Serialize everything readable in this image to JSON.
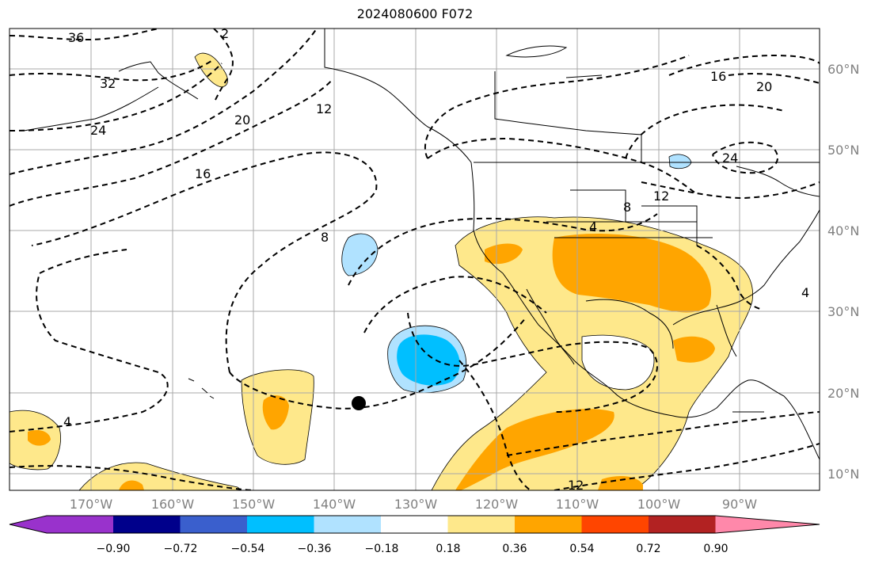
{
  "title": "2024080600 F072",
  "map": {
    "lat_labels": [
      "60°N",
      "50°N",
      "40°N",
      "30°N",
      "20°N",
      "10°N"
    ],
    "lon_labels": [
      "170°W",
      "160°W",
      "150°W",
      "140°W",
      "130°W",
      "120°W",
      "110°W",
      "100°W",
      "90°W"
    ],
    "contour_labels": [
      "36",
      "32",
      "24",
      "20",
      "16",
      "12",
      "8",
      "4",
      "2",
      "16",
      "20",
      "24",
      "12",
      "8",
      "4",
      "12",
      "4"
    ],
    "shading": "filled anomaly field",
    "contours": "dashed black lines"
  },
  "colorbar": {
    "ticks": [
      "−0.90",
      "−0.72",
      "−0.54",
      "−0.36",
      "−0.18",
      "0.18",
      "0.36",
      "0.54",
      "0.72",
      "0.90"
    ],
    "colors": [
      "#9932cc",
      "#00008b",
      "#3a5fcd",
      "#00bfff",
      "#b0e2ff",
      "#ffffff",
      "#fee88b",
      "#ffa500",
      "#ff4500",
      "#b22222",
      "#ff88aa"
    ]
  }
}
